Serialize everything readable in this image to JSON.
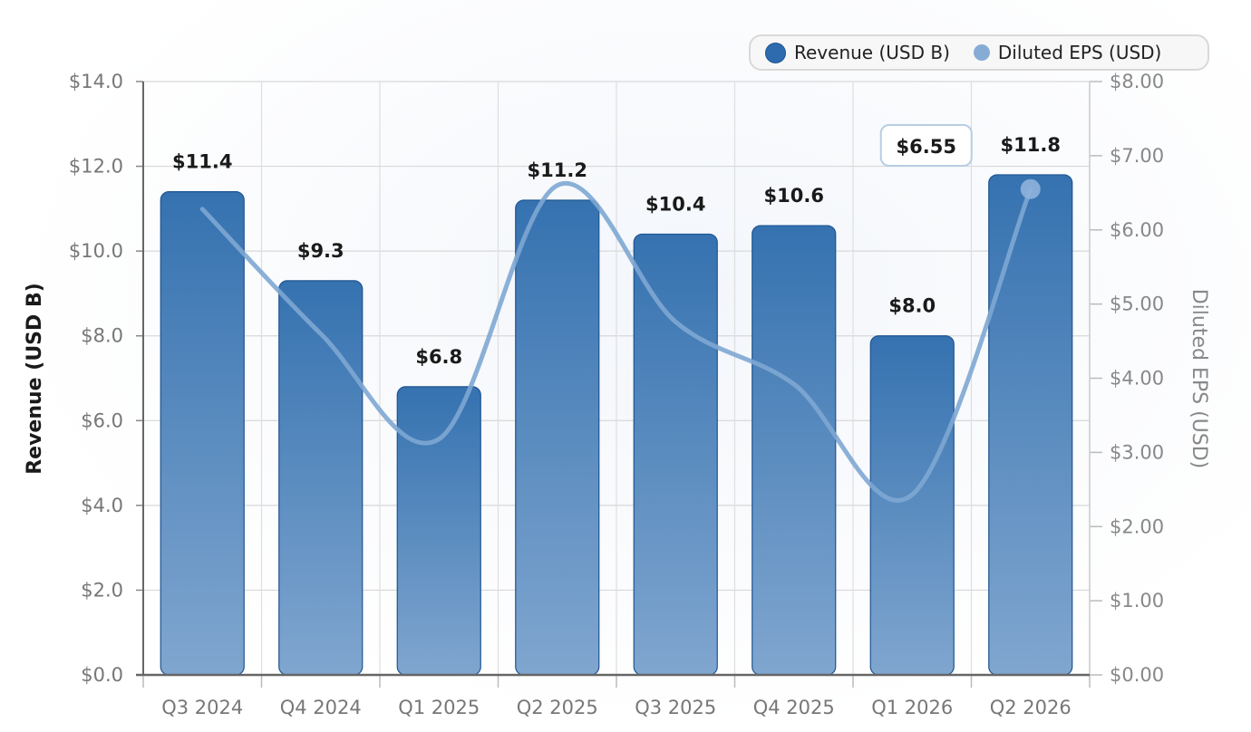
{
  "chart_data": {
    "type": "bar+line",
    "categories": [
      "Q3 2024",
      "Q4 2024",
      "Q1 2025",
      "Q2 2025",
      "Q3 2025",
      "Q4 2025",
      "Q1 2026",
      "Q2 2026"
    ],
    "series": [
      {
        "name": "Revenue (USD B)",
        "type": "bar",
        "axis": "left",
        "values": [
          11.4,
          9.3,
          6.8,
          11.2,
          10.4,
          10.6,
          8.0,
          11.8
        ],
        "labels": [
          "$11.4",
          "$9.3",
          "$6.8",
          "$11.2",
          "$10.4",
          "$10.6",
          "$8.0",
          "$11.8"
        ]
      },
      {
        "name": "Diluted EPS (USD)",
        "type": "line",
        "axis": "right",
        "values": [
          6.28,
          4.6,
          3.18,
          6.6,
          4.76,
          3.92,
          2.43,
          6.55
        ]
      }
    ],
    "ylabel_left": "Revenue (USD B)",
    "ylabel_right": "Diluted EPS (USD)",
    "ylim_left": [
      0,
      14
    ],
    "ylim_right": [
      0,
      8
    ],
    "yticks_left": [
      "$0.0",
      "$2.0",
      "$4.0",
      "$6.0",
      "$8.0",
      "$10.0",
      "$12.0",
      "$14.0"
    ],
    "yticks_right": [
      "$0.00",
      "$1.00",
      "$2.00",
      "$3.00",
      "$4.00",
      "$5.00",
      "$6.00",
      "$7.00",
      "$8.00"
    ],
    "annotation": {
      "category": "Q2 2026",
      "text": "$6.55"
    },
    "grid": true,
    "legend_position": "top-right",
    "colors": {
      "bar_top": "#3572b0",
      "bar_bottom": "#80a6cf",
      "bar_edge": "#1f5591",
      "line": "#7ea7d3",
      "marker": "#8fb3dc"
    }
  },
  "legend": {
    "revenue": "Revenue (USD B)",
    "eps": "Diluted EPS (USD)"
  }
}
